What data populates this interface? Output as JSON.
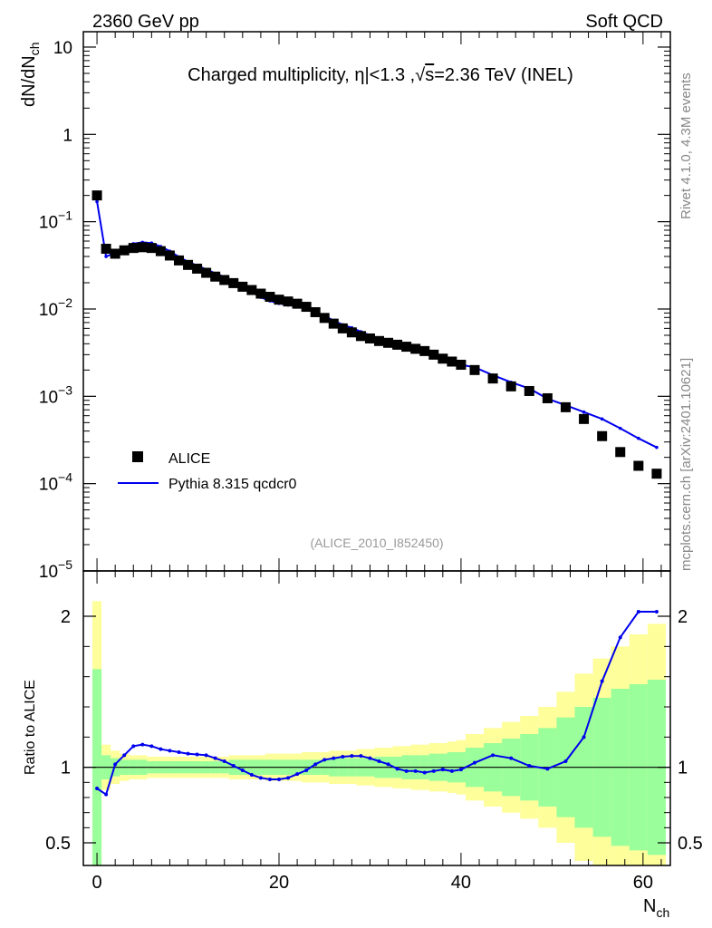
{
  "header": {
    "left": "2360 GeV pp",
    "right": "Soft QCD"
  },
  "side_labels": {
    "rivet": "Rivet 4.1.0,  4.3M events",
    "mcplots": "mcplots.cern.ch [arXiv:2401.10621]"
  },
  "colors": {
    "mc_line": "#0000ee",
    "band_inner": "#9afe9a",
    "band_outer": "#fefe9a",
    "data_marker": "#000000"
  },
  "chart_data": [
    {
      "type": "scatter",
      "title": "Charged multiplicity, |η|<1.3 ,√s=2.36 TeV (INEL)",
      "title_parts": {
        "prefix": "Charged multiplicity, ",
        "eta": "η",
        "mid": "|<1.3 ,",
        "sqrt": "√",
        "s": "s",
        "suffix": "=2.36 TeV (INEL)"
      },
      "ylabel": "dN/dN",
      "ylabel_sub": "ch",
      "yscale": "log",
      "ylim": [
        1e-05,
        15
      ],
      "xlim": [
        -1.5,
        63
      ],
      "yticks": [
        {
          "value": 10,
          "label": "10",
          "sup": ""
        },
        {
          "value": 1,
          "label": "1",
          "sup": ""
        },
        {
          "value": 0.1,
          "label": "10",
          "sup": "−1"
        },
        {
          "value": 0.01,
          "label": "10",
          "sup": "−2"
        },
        {
          "value": 0.001,
          "label": "10",
          "sup": "−3"
        },
        {
          "value": 0.0001,
          "label": "10",
          "sup": "−4"
        },
        {
          "value": 1e-05,
          "label": "10",
          "sup": "−5"
        }
      ],
      "watermark": "(ALICE_2010_I852450)",
      "legend": [
        {
          "name": "ALICE",
          "style": "marker"
        },
        {
          "name": "Pythia 8.315 qcdcr0",
          "style": "line"
        }
      ],
      "series": [
        {
          "name": "ALICE",
          "x": [
            0,
            1,
            2,
            3,
            4,
            5,
            6,
            7,
            8,
            9,
            10,
            11,
            12,
            13,
            14,
            15,
            16,
            17,
            18,
            19,
            20,
            21,
            22,
            23,
            24,
            25,
            26,
            27,
            28,
            29,
            30,
            31,
            32,
            33,
            34,
            35,
            36,
            37,
            38,
            39,
            40,
            41.5,
            43.5,
            45.5,
            47.5,
            49.5,
            51.5,
            53.5,
            55.5,
            57.5,
            59.5,
            61.5
          ],
          "y": [
            0.2,
            0.049,
            0.043,
            0.047,
            0.05,
            0.051,
            0.05,
            0.046,
            0.041,
            0.036,
            0.032,
            0.029,
            0.026,
            0.0235,
            0.0215,
            0.0198,
            0.018,
            0.0165,
            0.015,
            0.0138,
            0.0128,
            0.0122,
            0.0115,
            0.0106,
            0.0092,
            0.0079,
            0.0068,
            0.006,
            0.0054,
            0.0049,
            0.0046,
            0.0043,
            0.0041,
            0.0039,
            0.0037,
            0.0035,
            0.0033,
            0.003,
            0.0027,
            0.0025,
            0.0023,
            0.002,
            0.0016,
            0.0013,
            0.00115,
            0.00095,
            0.00075,
            0.00055,
            0.00035,
            0.00023,
            0.00016,
            0.00013
          ]
        },
        {
          "name": "Pythia 8.315 qcdcr0",
          "x": [
            0,
            1,
            2,
            3,
            4,
            5,
            6,
            7,
            8,
            9,
            10,
            11,
            12,
            13,
            14,
            15,
            16,
            17,
            18,
            19,
            20,
            21,
            22,
            23,
            24,
            25,
            26,
            27,
            28,
            29,
            30,
            31,
            32,
            33,
            34,
            35,
            36,
            37,
            38,
            39,
            40,
            41.5,
            43.5,
            45.5,
            47.5,
            49.5,
            51.5,
            53.5,
            55.5,
            57.5,
            59.5,
            61.5
          ],
          "y": [
            0.17,
            0.04,
            0.044,
            0.05,
            0.056,
            0.058,
            0.057,
            0.052,
            0.046,
            0.0395,
            0.0348,
            0.0315,
            0.0285,
            0.0256,
            0.0233,
            0.0212,
            0.0185,
            0.0157,
            0.0136,
            0.0124,
            0.0116,
            0.0111,
            0.0108,
            0.0103,
            0.0093,
            0.0083,
            0.0074,
            0.0066,
            0.0061,
            0.0055,
            0.005,
            0.0046,
            0.0043,
            0.0038,
            0.0036,
            0.0034,
            0.0032,
            0.0029,
            0.0027,
            0.0025,
            0.0023,
            0.00215,
            0.00175,
            0.00145,
            0.00123,
            0.00094,
            0.00079,
            0.00066,
            0.00055,
            0.00043,
            0.00033,
            0.00026
          ]
        }
      ]
    },
    {
      "type": "line",
      "ylabel": "Ratio to ALICE",
      "xlabel": "N",
      "xlabel_sub": "ch",
      "ylim": [
        0.35,
        2.3
      ],
      "xlim": [
        -1.5,
        63
      ],
      "xticks": [
        0,
        20,
        40,
        60
      ],
      "xtick_labels": [
        "0",
        "20",
        "40",
        "60"
      ],
      "yticks": [
        0.5,
        1,
        2
      ],
      "ytick_labels": [
        "0.5",
        "1",
        "2"
      ],
      "reference_line": 1,
      "bands": {
        "x_edges": [
          -0.5,
          0.5,
          1.5,
          2.5,
          3.5,
          4.5,
          5.5,
          6.5,
          7.5,
          8.5,
          9.5,
          10.5,
          11.5,
          12.5,
          13.5,
          14.5,
          15.5,
          16.5,
          17.5,
          18.5,
          19.5,
          20.5,
          21.5,
          22.5,
          23.5,
          24.5,
          25.5,
          26.5,
          27.5,
          28.5,
          29.5,
          30.5,
          31.5,
          32.5,
          33.5,
          34.5,
          35.5,
          36.5,
          37.5,
          38.5,
          39.5,
          40.5,
          42.5,
          44.5,
          46.5,
          48.5,
          50.5,
          52.5,
          54.5,
          56.5,
          58.5,
          60.5,
          62.5
        ],
        "inner": [
          0.65,
          0.08,
          0.06,
          0.05,
          0.05,
          0.05,
          0.04,
          0.04,
          0.04,
          0.04,
          0.04,
          0.04,
          0.04,
          0.04,
          0.04,
          0.05,
          0.05,
          0.05,
          0.05,
          0.05,
          0.05,
          0.05,
          0.05,
          0.05,
          0.05,
          0.05,
          0.06,
          0.06,
          0.06,
          0.06,
          0.06,
          0.07,
          0.07,
          0.07,
          0.08,
          0.08,
          0.08,
          0.09,
          0.09,
          0.1,
          0.1,
          0.13,
          0.16,
          0.19,
          0.22,
          0.26,
          0.33,
          0.4,
          0.46,
          0.52,
          0.55,
          0.58
        ],
        "outer": [
          1.1,
          0.15,
          0.11,
          0.09,
          0.08,
          0.08,
          0.07,
          0.07,
          0.07,
          0.07,
          0.07,
          0.07,
          0.07,
          0.07,
          0.07,
          0.08,
          0.08,
          0.08,
          0.08,
          0.09,
          0.09,
          0.09,
          0.09,
          0.1,
          0.1,
          0.1,
          0.11,
          0.11,
          0.11,
          0.12,
          0.12,
          0.13,
          0.13,
          0.14,
          0.14,
          0.15,
          0.15,
          0.16,
          0.16,
          0.17,
          0.18,
          0.22,
          0.26,
          0.3,
          0.34,
          0.4,
          0.5,
          0.62,
          0.72,
          0.8,
          0.88,
          0.95
        ]
      },
      "series": [
        {
          "name": "Pythia 8.315 qcdcr0 / ALICE",
          "x": [
            0,
            1,
            2,
            3,
            4,
            5,
            6,
            7,
            8,
            9,
            10,
            11,
            12,
            13,
            14,
            15,
            16,
            17,
            18,
            19,
            20,
            21,
            22,
            23,
            24,
            25,
            26,
            27,
            28,
            29,
            30,
            31,
            32,
            33,
            34,
            35,
            36,
            37,
            38,
            39,
            40,
            41.5,
            43.5,
            45.5,
            47.5,
            49.5,
            51.5,
            53.5,
            55.5,
            57.5,
            59.5,
            61.5
          ],
          "y": [
            0.86,
            0.82,
            1.02,
            1.08,
            1.14,
            1.15,
            1.14,
            1.12,
            1.11,
            1.1,
            1.09,
            1.085,
            1.08,
            1.06,
            1.04,
            1.01,
            0.98,
            0.95,
            0.93,
            0.92,
            0.92,
            0.93,
            0.955,
            0.98,
            1.02,
            1.05,
            1.06,
            1.07,
            1.075,
            1.075,
            1.06,
            1.04,
            1.02,
            0.99,
            0.975,
            0.975,
            0.965,
            0.975,
            0.985,
            0.975,
            0.985,
            1.03,
            1.08,
            1.06,
            1.01,
            0.99,
            1.04,
            1.2,
            1.57,
            1.86,
            2.03,
            2.03
          ]
        }
      ]
    }
  ]
}
